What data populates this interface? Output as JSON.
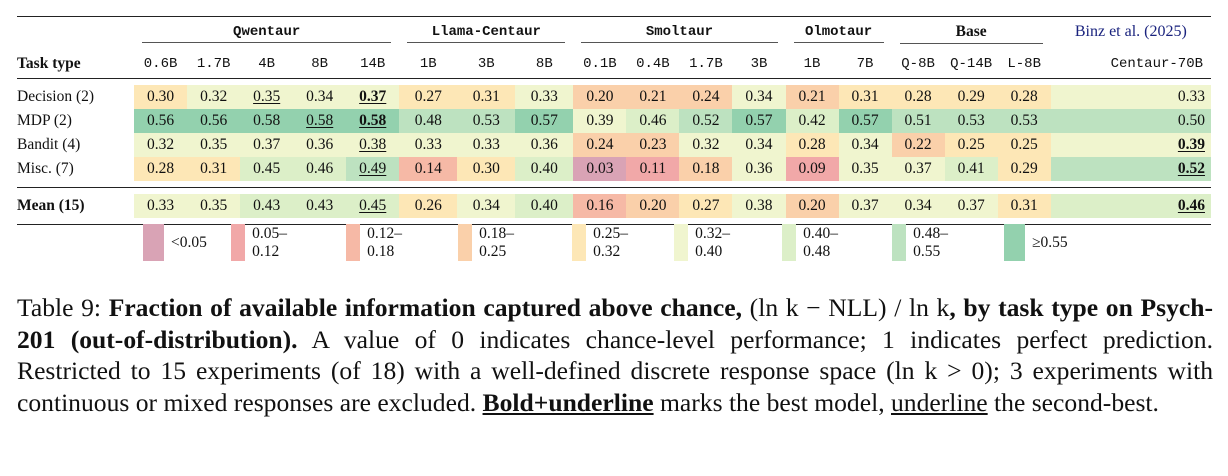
{
  "table": {
    "group_headers": [
      {
        "label": "Qwentaur",
        "span": 5,
        "mono": true
      },
      {
        "label": "Llama-Centaur",
        "span": 3,
        "mono": true
      },
      {
        "label": "Smoltaur",
        "span": 4,
        "mono": true
      },
      {
        "label": "Olmotaur",
        "span": 2,
        "mono": true
      },
      {
        "label": "Base",
        "span": 3,
        "mono": false
      },
      {
        "label": "Binz et al. (2025)",
        "span": 1,
        "mono": false,
        "link": true
      }
    ],
    "row_header_title": "Task type",
    "columns": [
      "0.6B",
      "1.7B",
      "4B",
      "8B",
      "14B",
      "1B",
      "3B",
      "8B",
      "0.1B",
      "0.4B",
      "1.7B",
      "3B",
      "1B",
      "7B",
      "Q-8B",
      "Q-14B",
      "L-8B",
      "Centaur-70B"
    ],
    "rows": [
      {
        "label": "Decision (2)",
        "values": [
          "0.30",
          "0.32",
          "0.35",
          "0.34",
          "0.37",
          "0.27",
          "0.31",
          "0.33",
          "0.20",
          "0.21",
          "0.24",
          "0.34",
          "0.21",
          "0.31",
          "0.28",
          "0.29",
          "0.28",
          "0.33"
        ],
        "style": [
          "",
          "",
          "u",
          "",
          "bu",
          "",
          "",
          "",
          "",
          "",
          "",
          "",
          "",
          "",
          "",
          "",
          "",
          ""
        ]
      },
      {
        "label": "MDP (2)",
        "values": [
          "0.56",
          "0.56",
          "0.58",
          "0.58",
          "0.58",
          "0.48",
          "0.53",
          "0.57",
          "0.39",
          "0.46",
          "0.52",
          "0.57",
          "0.42",
          "0.57",
          "0.51",
          "0.53",
          "0.53",
          "0.50"
        ],
        "style": [
          "",
          "",
          "",
          "u",
          "bu",
          "",
          "",
          "",
          "",
          "",
          "",
          "",
          "",
          "",
          "",
          "",
          "",
          ""
        ]
      },
      {
        "label": "Bandit (4)",
        "values": [
          "0.32",
          "0.35",
          "0.37",
          "0.36",
          "0.38",
          "0.33",
          "0.33",
          "0.36",
          "0.24",
          "0.23",
          "0.32",
          "0.34",
          "0.28",
          "0.34",
          "0.22",
          "0.25",
          "0.25",
          "0.39"
        ],
        "style": [
          "",
          "",
          "",
          "",
          "u",
          "",
          "",
          "",
          "",
          "",
          "",
          "",
          "",
          "",
          "",
          "",
          "",
          "bu"
        ]
      },
      {
        "label": "Misc. (7)",
        "values": [
          "0.28",
          "0.31",
          "0.45",
          "0.46",
          "0.49",
          "0.14",
          "0.30",
          "0.40",
          "0.03",
          "0.11",
          "0.18",
          "0.36",
          "0.09",
          "0.35",
          "0.37",
          "0.41",
          "0.29",
          "0.52"
        ],
        "style": [
          "",
          "",
          "",
          "",
          "u",
          "",
          "",
          "",
          "",
          "",
          "",
          "",
          "",
          "",
          "",
          "",
          "",
          "bu"
        ]
      }
    ],
    "mean_row": {
      "label": "Mean (15)",
      "values": [
        "0.33",
        "0.35",
        "0.43",
        "0.43",
        "0.45",
        "0.26",
        "0.34",
        "0.40",
        "0.16",
        "0.20",
        "0.27",
        "0.38",
        "0.20",
        "0.37",
        "0.34",
        "0.37",
        "0.31",
        "0.46"
      ],
      "style": [
        "",
        "",
        "",
        "",
        "u",
        "",
        "",
        "",
        "",
        "",
        "",
        "",
        "",
        "",
        "",
        "",
        "",
        "bu"
      ]
    }
  },
  "legend": [
    {
      "label": "<0.05",
      "color": "#d9a3b5"
    },
    {
      "label": "0.05–0.12",
      "color": "#f1a8a8"
    },
    {
      "label": "0.12–0.18",
      "color": "#f6b9a6"
    },
    {
      "label": "0.18–0.25",
      "color": "#fad0aa"
    },
    {
      "label": "0.25–0.32",
      "color": "#fde7b6"
    },
    {
      "label": "0.32–0.40",
      "color": "#f0f5cf"
    },
    {
      "label": "0.40–0.48",
      "color": "#dcefc8"
    },
    {
      "label": "0.48–0.55",
      "color": "#bde2c0"
    },
    {
      "label": "≥0.55",
      "color": "#93d1ae"
    }
  ],
  "caption": {
    "prefix": "Table 9: ",
    "bold1": "Fraction of available information captured above chance,",
    "math": " (ln k − NLL) / ln k",
    "bold2": ", by task type on Psych-201 (out-of-distribution).",
    "text1": " A value of 0 indicates chance-level performance; 1 indicates perfect prediction. Restricted to 15 experiments (of 18) with a well-defined discrete response space (ln k > 0); 3 experiments with continuous or mixed responses are excluded. ",
    "bold_under": "Bold+underline",
    "text2": " marks the best model, ",
    "under": "underline",
    "text3": " the second-best."
  }
}
